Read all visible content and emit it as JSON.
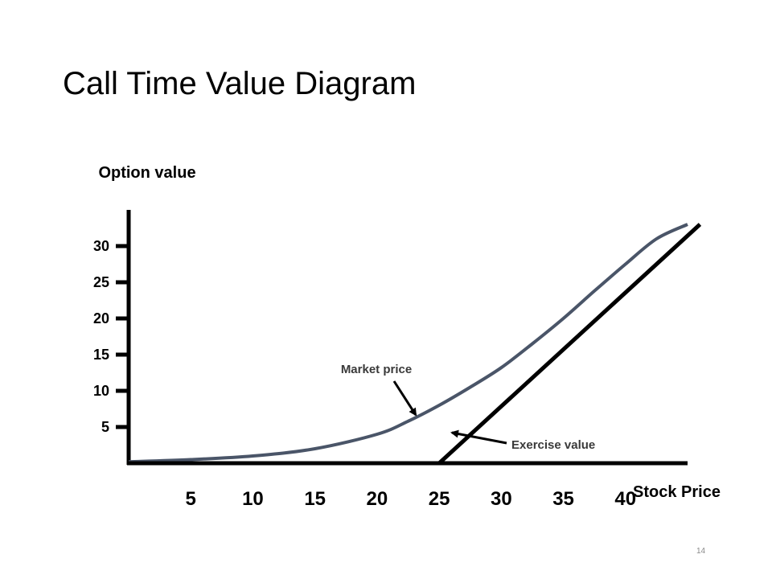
{
  "page": {
    "number": "14"
  },
  "chart_data": {
    "type": "line",
    "title": "Call Time Value Diagram",
    "ylabel": "Option value",
    "xlabel": "Stock Price",
    "x_ticks": [
      5,
      10,
      15,
      20,
      25,
      30,
      35,
      40
    ],
    "y_ticks": [
      5,
      10,
      15,
      20,
      25,
      30
    ],
    "xlim": [
      0,
      45
    ],
    "ylim": [
      0,
      35
    ],
    "grid": false,
    "legend": "none",
    "series": [
      {
        "name": "Market price",
        "color": "#4a5568",
        "x": [
          0,
          5,
          10,
          15,
          20,
          22.5,
          25,
          27.5,
          30,
          32.5,
          35,
          37.5,
          40,
          42.5,
          45
        ],
        "y": [
          0.2,
          0.5,
          1.0,
          2.0,
          4.0,
          5.8,
          8.0,
          10.5,
          13.2,
          16.5,
          20.0,
          23.8,
          27.5,
          31.0,
          33.0
        ]
      },
      {
        "name": "Exercise value",
        "color": "#000000",
        "x": [
          0,
          25,
          46
        ],
        "y": [
          0,
          0,
          33
        ]
      }
    ],
    "annotations": [
      {
        "text": "Market price",
        "points_to_series": 0
      },
      {
        "text": "Exercise value",
        "points_to_series": 1
      }
    ]
  }
}
